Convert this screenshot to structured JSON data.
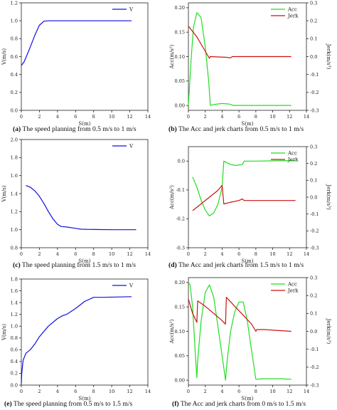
{
  "colors": {
    "blue": "#1010e0",
    "green": "#22dd22",
    "red": "#cc1111",
    "axis": "#222222"
  },
  "captions": [
    {
      "tag": "(a)",
      "text": " The speed planning from 0.5 m/s to 1 m/s"
    },
    {
      "tag": "(b)",
      "text": " The Acc and jerk charts from 0.5 m/s to 1 m/s"
    },
    {
      "tag": "(c)",
      "text": " The speed planning from 1.5 m/s to 1 m/s"
    },
    {
      "tag": "(d)",
      "text": " The Acc and jerk charts from 1.5 m/s to 1 m/s"
    },
    {
      "tag": "(e)",
      "text": " The speed planning from 0.5 m/s to 1.5 m/s"
    },
    {
      "tag": "(f)",
      "text": " The Acc and jerk charts from 0 m/s to 1.5 m/s"
    }
  ],
  "chart_data": [
    {
      "id": "a",
      "type": "line",
      "xlabel": "S(m)",
      "ylabel": "V(m/s)",
      "xlim": [
        0,
        14
      ],
      "ylim": [
        0,
        1.2
      ],
      "xticks": [
        "0",
        "2",
        "4",
        "6",
        "8",
        "10",
        "12",
        "14"
      ],
      "yticks": [
        "0.0",
        "0.2",
        "0.4",
        "0.6",
        "0.8",
        "1.0",
        "1.2"
      ],
      "legend": "top-right",
      "series": [
        {
          "name": "V",
          "axis": "left",
          "color": "blue",
          "x": [
            0,
            0.3,
            0.6,
            1.0,
            1.5,
            2.0,
            2.5,
            3.0,
            5.0,
            8.0,
            12.2
          ],
          "y": [
            0.5,
            0.54,
            0.61,
            0.71,
            0.84,
            0.95,
            0.995,
            1.0,
            1.0,
            1.0,
            1.0
          ]
        }
      ]
    },
    {
      "id": "b",
      "type": "line",
      "xlabel": "S(m)",
      "ylabel": "Acc(m/s²)",
      "y2label": "Jerk(m/s³)",
      "xlim": [
        0,
        14
      ],
      "ylim": [
        -0.01,
        0.21
      ],
      "y2lim": [
        -0.3,
        0.3
      ],
      "xticks": [
        "0",
        "2",
        "4",
        "6",
        "8",
        "10",
        "12",
        "14"
      ],
      "yticks": [
        "0.00",
        "0.05",
        "0.10",
        "0.15",
        "0.20"
      ],
      "y2ticks": [
        "-0.3",
        "-0.2",
        "-0.1",
        "0.0",
        "0.1",
        "0.2",
        "0.3"
      ],
      "legend": "top-right",
      "series": [
        {
          "name": "Acc",
          "axis": "left",
          "color": "green",
          "x": [
            0,
            0.3,
            0.6,
            1.0,
            1.5,
            2.0,
            2.4,
            2.6,
            3.0,
            4.0,
            4.8,
            5.0,
            5.3,
            8.0,
            12.2
          ],
          "y": [
            0.0,
            0.09,
            0.16,
            0.19,
            0.18,
            0.12,
            0.05,
            0.0,
            0.002,
            0.004,
            0.003,
            0.002,
            0.0,
            0.0,
            0.0
          ]
        },
        {
          "name": "Jerk",
          "axis": "right",
          "color": "red",
          "x": [
            0,
            1.0,
            2.0,
            2.5,
            2.6,
            4.5,
            5.0,
            5.2,
            6.0,
            8.0,
            12.2
          ],
          "y": [
            0.17,
            0.11,
            0.03,
            -0.01,
            0.0,
            -0.004,
            -0.007,
            0.0,
            0.0,
            0.0,
            0.0
          ]
        }
      ]
    },
    {
      "id": "c",
      "type": "line",
      "xlabel": "S(m)",
      "ylabel": "V(m/s)",
      "xlim": [
        0,
        14
      ],
      "ylim": [
        0.8,
        2.0
      ],
      "xticks": [
        "0",
        "2",
        "4",
        "6",
        "8",
        "10",
        "12",
        "14"
      ],
      "yticks": [
        "0.8",
        "1.0",
        "1.2",
        "1.4",
        "1.6",
        "1.8",
        "2.0"
      ],
      "legend": "top-right",
      "series": [
        {
          "name": "V",
          "axis": "left",
          "color": "blue",
          "x": [
            0.5,
            1.0,
            1.5,
            2.0,
            2.5,
            3.0,
            3.5,
            4.0,
            4.4,
            5.0,
            6.0,
            6.6,
            8.0,
            10.0,
            12.7
          ],
          "y": [
            1.49,
            1.47,
            1.43,
            1.37,
            1.29,
            1.2,
            1.12,
            1.06,
            1.035,
            1.03,
            1.015,
            1.005,
            1.002,
            1.0,
            1.0
          ]
        }
      ]
    },
    {
      "id": "d",
      "type": "line",
      "xlabel": "S(m)",
      "ylabel": "Acc(m/s²)",
      "y2label": "Jerk(m/s³)",
      "xlim": [
        0,
        14
      ],
      "ylim": [
        -0.3,
        0.05
      ],
      "y2lim": [
        -0.3,
        0.3
      ],
      "xticks": [
        "0",
        "2",
        "4",
        "6",
        "8",
        "10",
        "12",
        "14"
      ],
      "yticks": [
        "-0.3",
        "-0.2",
        "-0.1",
        "0.0"
      ],
      "y2ticks": [
        "-0.3",
        "-0.2",
        "-0.1",
        "0.0",
        "0.1",
        "0.2",
        "0.3"
      ],
      "legend": "top-right",
      "series": [
        {
          "name": "Acc",
          "axis": "left",
          "color": "green",
          "x": [
            0.5,
            1.0,
            1.5,
            2.0,
            2.5,
            3.0,
            3.5,
            4.0,
            4.2,
            5.0,
            5.6,
            6.4,
            6.6,
            8.0,
            12.7
          ],
          "y": [
            -0.055,
            -0.09,
            -0.135,
            -0.17,
            -0.19,
            -0.18,
            -0.15,
            -0.09,
            0.0,
            -0.012,
            -0.015,
            -0.012,
            0.0,
            0.0,
            0.002
          ]
        },
        {
          "name": "Jerk",
          "axis": "right",
          "color": "red",
          "x": [
            0.5,
            1.5,
            2.5,
            3.5,
            4.0,
            4.2,
            5.0,
            6.0,
            6.4,
            6.6,
            8.0,
            12.7
          ],
          "y": [
            -0.08,
            -0.04,
            0.0,
            0.04,
            0.07,
            -0.04,
            -0.03,
            -0.02,
            -0.01,
            -0.02,
            -0.02,
            -0.02
          ]
        }
      ]
    },
    {
      "id": "e",
      "type": "line",
      "xlabel": "S(m)",
      "ylabel": "V(m/s)",
      "xlim": [
        0,
        14
      ],
      "ylim": [
        0,
        1.8
      ],
      "xticks": [
        "0",
        "2",
        "4",
        "6",
        "8",
        "10",
        "12",
        "14"
      ],
      "yticks": [
        "0.0",
        "0.2",
        "0.4",
        "0.6",
        "0.8",
        "1.0",
        "1.2",
        "1.4",
        "1.6",
        "1.8"
      ],
      "legend": "top-right",
      "series": [
        {
          "name": "V",
          "axis": "left",
          "color": "blue",
          "x": [
            0,
            0.05,
            0.2,
            0.5,
            1.0,
            1.5,
            2.0,
            3.0,
            4.0,
            4.6,
            5.0,
            6.0,
            7.0,
            8.0,
            9.0,
            12.2
          ],
          "y": [
            0.02,
            0.2,
            0.42,
            0.54,
            0.6,
            0.7,
            0.82,
            1.0,
            1.13,
            1.18,
            1.2,
            1.3,
            1.42,
            1.49,
            1.49,
            1.5
          ]
        }
      ]
    },
    {
      "id": "f",
      "type": "line",
      "xlabel": "S(m)",
      "ylabel": "Acc(m/s²)",
      "y2label": "Jerk(m/s³)",
      "xlim": [
        0,
        14
      ],
      "ylim": [
        -0.01,
        0.21
      ],
      "y2lim": [
        -0.3,
        0.3
      ],
      "xticks": [
        "0",
        "2",
        "4",
        "6",
        "8",
        "10",
        "12",
        "14"
      ],
      "yticks": [
        "0.00",
        "0.05",
        "0.10",
        "0.15",
        "0.20"
      ],
      "y2ticks": [
        "-0.3",
        "-0.2",
        "-0.1",
        "0.0",
        "0.1",
        "0.2",
        "0.3"
      ],
      "legend": "top-right",
      "series": [
        {
          "name": "Acc",
          "axis": "left",
          "color": "green",
          "x": [
            0,
            0.2,
            0.5,
            0.8,
            1.0,
            1.1,
            1.5,
            2.0,
            2.5,
            3.0,
            3.5,
            4.0,
            4.4,
            4.6,
            5.0,
            5.5,
            6.0,
            6.5,
            7.0,
            7.5,
            8.0,
            9.0,
            11.0,
            12.2
          ],
          "y": [
            0.2,
            0.195,
            0.15,
            0.06,
            0.005,
            0.04,
            0.12,
            0.18,
            0.195,
            0.17,
            0.11,
            0.05,
            0.0,
            0.04,
            0.1,
            0.14,
            0.16,
            0.16,
            0.12,
            0.06,
            0.002,
            0.003,
            0.003,
            0.002
          ]
        },
        {
          "name": "Jerk",
          "axis": "right",
          "color": "red",
          "x": [
            0,
            0.5,
            1.0,
            1.1,
            2.0,
            3.0,
            4.0,
            4.4,
            4.5,
            5.5,
            6.5,
            7.5,
            8.0,
            8.1,
            9.0,
            12.2
          ],
          "y": [
            0.18,
            0.1,
            0.05,
            0.17,
            0.14,
            0.1,
            0.06,
            0.04,
            0.19,
            0.14,
            0.09,
            0.04,
            0.0,
            0.01,
            0.01,
            0.0
          ]
        }
      ]
    }
  ]
}
